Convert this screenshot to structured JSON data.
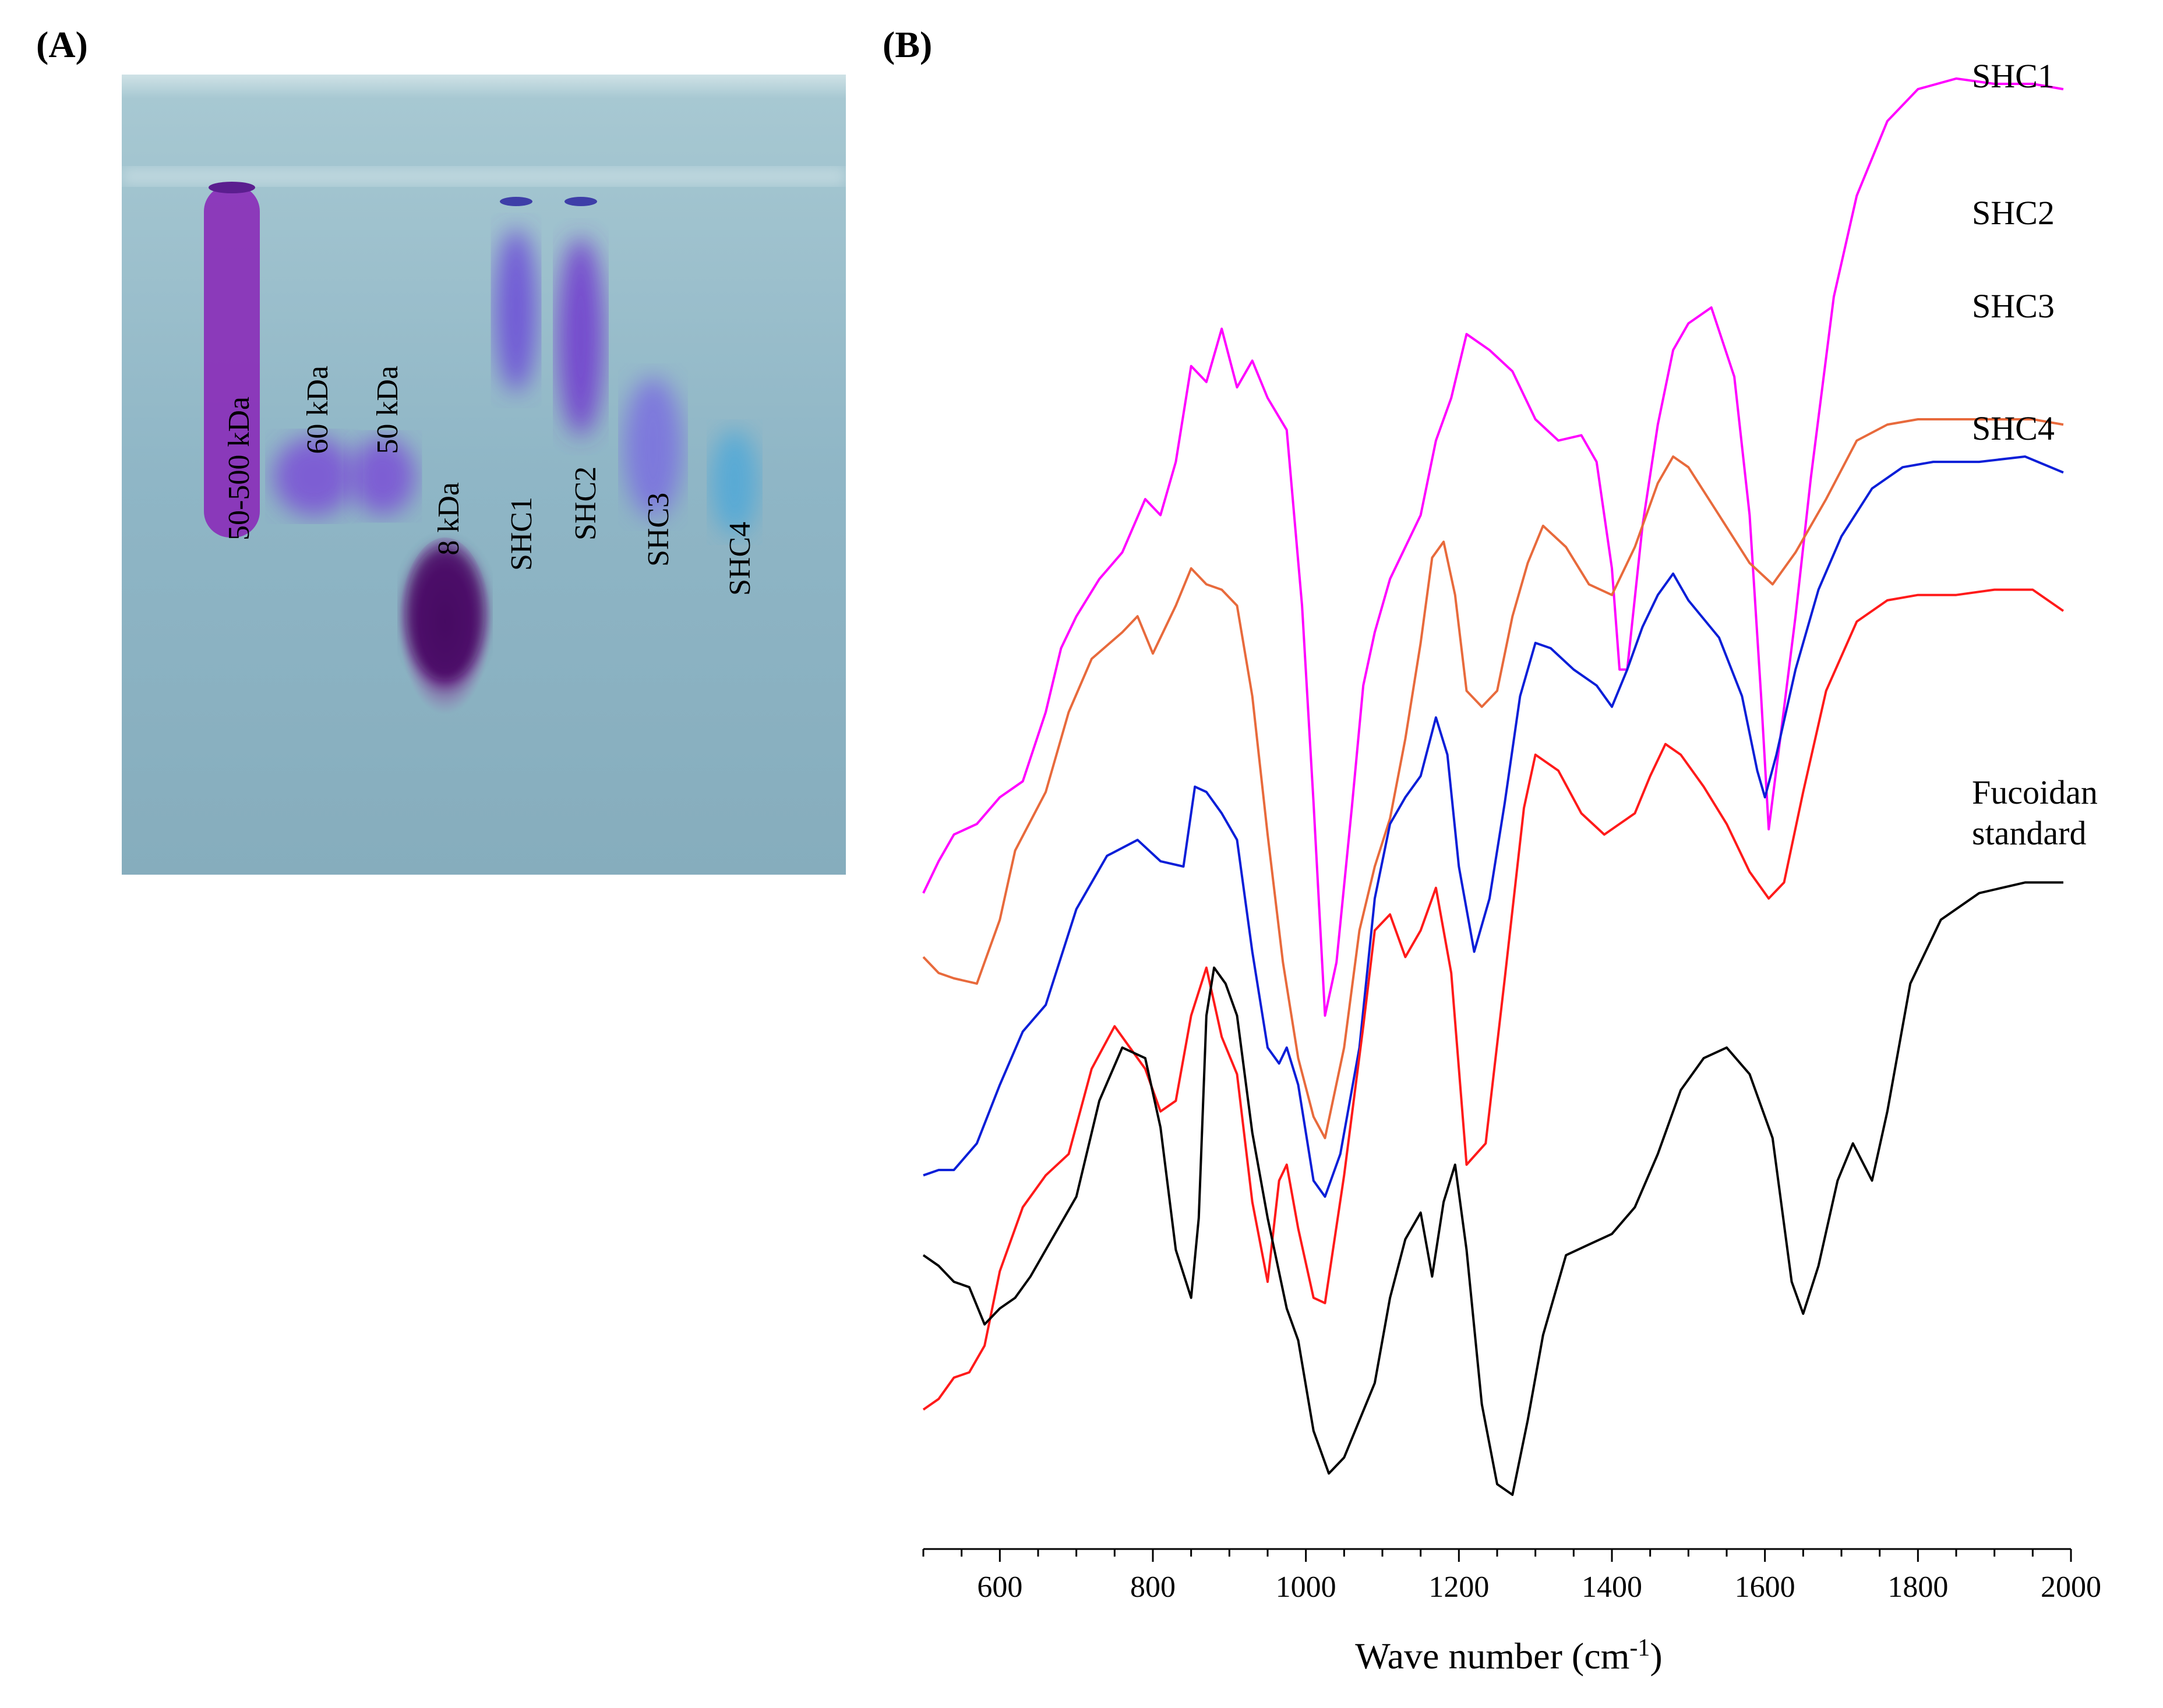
{
  "panel_a": {
    "label": "(A)",
    "lanes": [
      {
        "label": "50-500 kDa",
        "color": "#8a2bb8"
      },
      {
        "label": "60 kDa",
        "color": "#7a4fd6"
      },
      {
        "label": "50 kDa",
        "color": "#7a4fd6"
      },
      {
        "label": "8 kDa",
        "color": "#4a0a66"
      },
      {
        "label": "SHC1",
        "color": "#6a48d8"
      },
      {
        "label": "SHC2",
        "color": "#7038cf"
      },
      {
        "label": "SHC3",
        "color": "#7a6ee0"
      },
      {
        "label": "SHC4",
        "color": "#4fa8d8"
      }
    ],
    "gel_color": "#8fb6c6"
  },
  "chart_data": {
    "type": "line",
    "panel_label": "(B)",
    "xlabel": "Wave number (cm⁻¹)",
    "xlabel_base": "Wave number (cm",
    "xlabel_sup": "-1",
    "xlabel_tail": ")",
    "ylabel": "",
    "xlim": [
      500,
      2000
    ],
    "x_ticks": [
      600,
      800,
      1000,
      1200,
      1400,
      1600,
      1800,
      2000
    ],
    "y_axis_shown": false,
    "grid": false,
    "series": [
      {
        "name": "SHC1",
        "color": "#ff00ff",
        "points": [
          [
            500,
            1.09
          ],
          [
            520,
            1.03
          ],
          [
            540,
            0.98
          ],
          [
            570,
            0.96
          ],
          [
            600,
            0.91
          ],
          [
            630,
            0.88
          ],
          [
            660,
            0.75
          ],
          [
            680,
            0.63
          ],
          [
            700,
            0.57
          ],
          [
            730,
            0.5
          ],
          [
            760,
            0.45
          ],
          [
            790,
            0.35
          ],
          [
            810,
            0.38
          ],
          [
            830,
            0.28
          ],
          [
            850,
            0.1
          ],
          [
            870,
            0.13
          ],
          [
            890,
            0.03
          ],
          [
            910,
            0.14
          ],
          [
            930,
            0.09
          ],
          [
            950,
            0.16
          ],
          [
            975,
            0.22
          ],
          [
            995,
            0.55
          ],
          [
            1010,
            0.92
          ],
          [
            1025,
            1.32
          ],
          [
            1040,
            1.22
          ],
          [
            1060,
            0.93
          ],
          [
            1075,
            0.7
          ],
          [
            1090,
            0.6
          ],
          [
            1110,
            0.5
          ],
          [
            1130,
            0.44
          ],
          [
            1150,
            0.38
          ],
          [
            1170,
            0.24
          ],
          [
            1190,
            0.16
          ],
          [
            1210,
            0.04
          ],
          [
            1240,
            0.07
          ],
          [
            1270,
            0.11
          ],
          [
            1300,
            0.2
          ],
          [
            1330,
            0.24
          ],
          [
            1360,
            0.23
          ],
          [
            1380,
            0.28
          ],
          [
            1400,
            0.48
          ],
          [
            1410,
            0.67
          ],
          [
            1420,
            0.67
          ],
          [
            1440,
            0.4
          ],
          [
            1460,
            0.21
          ],
          [
            1480,
            0.07
          ],
          [
            1500,
            0.02
          ],
          [
            1530,
            -0.01
          ],
          [
            1560,
            0.12
          ],
          [
            1580,
            0.38
          ],
          [
            1595,
            0.72
          ],
          [
            1605,
            0.97
          ],
          [
            1620,
            0.8
          ],
          [
            1640,
            0.57
          ],
          [
            1660,
            0.31
          ],
          [
            1690,
            -0.03
          ],
          [
            1720,
            -0.22
          ],
          [
            1760,
            -0.36
          ],
          [
            1800,
            -0.42
          ],
          [
            1850,
            -0.44
          ],
          [
            1900,
            -0.43
          ],
          [
            1950,
            -0.43
          ],
          [
            1990,
            -0.42
          ]
        ]
      },
      {
        "name": "SHC2",
        "color": "#e86a3c",
        "points": [
          [
            500,
            1.21
          ],
          [
            520,
            1.24
          ],
          [
            540,
            1.25
          ],
          [
            570,
            1.26
          ],
          [
            600,
            1.14
          ],
          [
            620,
            1.01
          ],
          [
            660,
            0.9
          ],
          [
            690,
            0.75
          ],
          [
            720,
            0.65
          ],
          [
            760,
            0.6
          ],
          [
            780,
            0.57
          ],
          [
            800,
            0.64
          ],
          [
            830,
            0.55
          ],
          [
            850,
            0.48
          ],
          [
            870,
            0.51
          ],
          [
            890,
            0.52
          ],
          [
            910,
            0.55
          ],
          [
            930,
            0.72
          ],
          [
            950,
            0.98
          ],
          [
            970,
            1.22
          ],
          [
            990,
            1.4
          ],
          [
            1010,
            1.51
          ],
          [
            1025,
            1.55
          ],
          [
            1050,
            1.38
          ],
          [
            1070,
            1.16
          ],
          [
            1090,
            1.04
          ],
          [
            1110,
            0.95
          ],
          [
            1130,
            0.8
          ],
          [
            1150,
            0.62
          ],
          [
            1165,
            0.46
          ],
          [
            1180,
            0.43
          ],
          [
            1195,
            0.53
          ],
          [
            1210,
            0.71
          ],
          [
            1230,
            0.74
          ],
          [
            1250,
            0.71
          ],
          [
            1270,
            0.57
          ],
          [
            1290,
            0.47
          ],
          [
            1310,
            0.4
          ],
          [
            1340,
            0.44
          ],
          [
            1370,
            0.51
          ],
          [
            1400,
            0.53
          ],
          [
            1430,
            0.44
          ],
          [
            1460,
            0.32
          ],
          [
            1480,
            0.27
          ],
          [
            1500,
            0.29
          ],
          [
            1540,
            0.38
          ],
          [
            1580,
            0.47
          ],
          [
            1610,
            0.51
          ],
          [
            1640,
            0.45
          ],
          [
            1680,
            0.35
          ],
          [
            1720,
            0.24
          ],
          [
            1760,
            0.21
          ],
          [
            1800,
            0.2
          ],
          [
            1850,
            0.2
          ],
          [
            1900,
            0.2
          ],
          [
            1950,
            0.2
          ],
          [
            1990,
            0.21
          ]
        ]
      },
      {
        "name": "SHC3",
        "color": "#0a1ed8",
        "points": [
          [
            500,
            1.62
          ],
          [
            520,
            1.61
          ],
          [
            540,
            1.61
          ],
          [
            570,
            1.56
          ],
          [
            600,
            1.45
          ],
          [
            630,
            1.35
          ],
          [
            660,
            1.3
          ],
          [
            700,
            1.12
          ],
          [
            740,
            1.02
          ],
          [
            780,
            0.99
          ],
          [
            810,
            1.03
          ],
          [
            840,
            1.04
          ],
          [
            855,
            0.89
          ],
          [
            870,
            0.9
          ],
          [
            890,
            0.94
          ],
          [
            910,
            0.99
          ],
          [
            930,
            1.2
          ],
          [
            950,
            1.38
          ],
          [
            965,
            1.41
          ],
          [
            975,
            1.38
          ],
          [
            990,
            1.45
          ],
          [
            1010,
            1.63
          ],
          [
            1025,
            1.66
          ],
          [
            1045,
            1.58
          ],
          [
            1070,
            1.38
          ],
          [
            1090,
            1.1
          ],
          [
            1110,
            0.96
          ],
          [
            1130,
            0.91
          ],
          [
            1150,
            0.87
          ],
          [
            1170,
            0.76
          ],
          [
            1185,
            0.83
          ],
          [
            1200,
            1.04
          ],
          [
            1220,
            1.2
          ],
          [
            1240,
            1.1
          ],
          [
            1260,
            0.92
          ],
          [
            1280,
            0.72
          ],
          [
            1300,
            0.62
          ],
          [
            1320,
            0.63
          ],
          [
            1350,
            0.67
          ],
          [
            1380,
            0.7
          ],
          [
            1400,
            0.74
          ],
          [
            1420,
            0.67
          ],
          [
            1440,
            0.59
          ],
          [
            1460,
            0.53
          ],
          [
            1480,
            0.49
          ],
          [
            1500,
            0.54
          ],
          [
            1540,
            0.61
          ],
          [
            1570,
            0.72
          ],
          [
            1590,
            0.86
          ],
          [
            1600,
            0.91
          ],
          [
            1615,
            0.83
          ],
          [
            1640,
            0.67
          ],
          [
            1670,
            0.52
          ],
          [
            1700,
            0.42
          ],
          [
            1740,
            0.33
          ],
          [
            1780,
            0.29
          ],
          [
            1820,
            0.28
          ],
          [
            1880,
            0.28
          ],
          [
            1940,
            0.27
          ],
          [
            1990,
            0.3
          ]
        ]
      },
      {
        "name": "SHC4",
        "color": "#ff1a1a",
        "points": [
          [
            500,
            2.06
          ],
          [
            520,
            2.04
          ],
          [
            540,
            2.0
          ],
          [
            560,
            1.99
          ],
          [
            580,
            1.94
          ],
          [
            600,
            1.8
          ],
          [
            630,
            1.68
          ],
          [
            660,
            1.62
          ],
          [
            690,
            1.58
          ],
          [
            720,
            1.42
          ],
          [
            750,
            1.34
          ],
          [
            770,
            1.38
          ],
          [
            790,
            1.42
          ],
          [
            810,
            1.5
          ],
          [
            830,
            1.48
          ],
          [
            850,
            1.32
          ],
          [
            870,
            1.23
          ],
          [
            890,
            1.36
          ],
          [
            910,
            1.43
          ],
          [
            930,
            1.67
          ],
          [
            950,
            1.82
          ],
          [
            965,
            1.63
          ],
          [
            975,
            1.6
          ],
          [
            990,
            1.72
          ],
          [
            1010,
            1.85
          ],
          [
            1025,
            1.86
          ],
          [
            1050,
            1.62
          ],
          [
            1075,
            1.34
          ],
          [
            1090,
            1.16
          ],
          [
            1110,
            1.13
          ],
          [
            1130,
            1.21
          ],
          [
            1150,
            1.16
          ],
          [
            1170,
            1.08
          ],
          [
            1190,
            1.24
          ],
          [
            1210,
            1.6
          ],
          [
            1235,
            1.56
          ],
          [
            1260,
            1.25
          ],
          [
            1285,
            0.93
          ],
          [
            1300,
            0.83
          ],
          [
            1330,
            0.86
          ],
          [
            1360,
            0.94
          ],
          [
            1390,
            0.98
          ],
          [
            1410,
            0.96
          ],
          [
            1430,
            0.94
          ],
          [
            1450,
            0.87
          ],
          [
            1470,
            0.81
          ],
          [
            1490,
            0.83
          ],
          [
            1520,
            0.89
          ],
          [
            1550,
            0.96
          ],
          [
            1580,
            1.05
          ],
          [
            1605,
            1.1
          ],
          [
            1625,
            1.07
          ],
          [
            1650,
            0.9
          ],
          [
            1680,
            0.71
          ],
          [
            1720,
            0.58
          ],
          [
            1760,
            0.54
          ],
          [
            1800,
            0.53
          ],
          [
            1850,
            0.53
          ],
          [
            1900,
            0.52
          ],
          [
            1950,
            0.52
          ],
          [
            1990,
            0.56
          ]
        ]
      },
      {
        "name": "Fucoidan standard",
        "color": "#000000",
        "points": [
          [
            500,
            1.77
          ],
          [
            520,
            1.79
          ],
          [
            540,
            1.82
          ],
          [
            560,
            1.83
          ],
          [
            580,
            1.9
          ],
          [
            600,
            1.87
          ],
          [
            620,
            1.85
          ],
          [
            640,
            1.81
          ],
          [
            660,
            1.76
          ],
          [
            700,
            1.66
          ],
          [
            730,
            1.48
          ],
          [
            760,
            1.38
          ],
          [
            790,
            1.4
          ],
          [
            810,
            1.53
          ],
          [
            830,
            1.76
          ],
          [
            850,
            1.85
          ],
          [
            860,
            1.7
          ],
          [
            870,
            1.32
          ],
          [
            880,
            1.23
          ],
          [
            895,
            1.26
          ],
          [
            910,
            1.32
          ],
          [
            930,
            1.54
          ],
          [
            950,
            1.7
          ],
          [
            975,
            1.87
          ],
          [
            990,
            1.93
          ],
          [
            1010,
            2.1
          ],
          [
            1030,
            2.18
          ],
          [
            1050,
            2.15
          ],
          [
            1070,
            2.08
          ],
          [
            1090,
            2.01
          ],
          [
            1110,
            1.85
          ],
          [
            1130,
            1.74
          ],
          [
            1150,
            1.69
          ],
          [
            1165,
            1.81
          ],
          [
            1180,
            1.67
          ],
          [
            1195,
            1.6
          ],
          [
            1210,
            1.76
          ],
          [
            1230,
            2.05
          ],
          [
            1250,
            2.2
          ],
          [
            1270,
            2.22
          ],
          [
            1290,
            2.08
          ],
          [
            1310,
            1.92
          ],
          [
            1340,
            1.77
          ],
          [
            1370,
            1.75
          ],
          [
            1400,
            1.73
          ],
          [
            1430,
            1.68
          ],
          [
            1460,
            1.58
          ],
          [
            1490,
            1.46
          ],
          [
            1520,
            1.4
          ],
          [
            1550,
            1.38
          ],
          [
            1580,
            1.43
          ],
          [
            1610,
            1.55
          ],
          [
            1635,
            1.82
          ],
          [
            1650,
            1.88
          ],
          [
            1670,
            1.79
          ],
          [
            1695,
            1.63
          ],
          [
            1715,
            1.56
          ],
          [
            1740,
            1.63
          ],
          [
            1760,
            1.5
          ],
          [
            1790,
            1.26
          ],
          [
            1830,
            1.14
          ],
          [
            1880,
            1.09
          ],
          [
            1940,
            1.07
          ],
          [
            1990,
            1.07
          ]
        ]
      }
    ]
  }
}
